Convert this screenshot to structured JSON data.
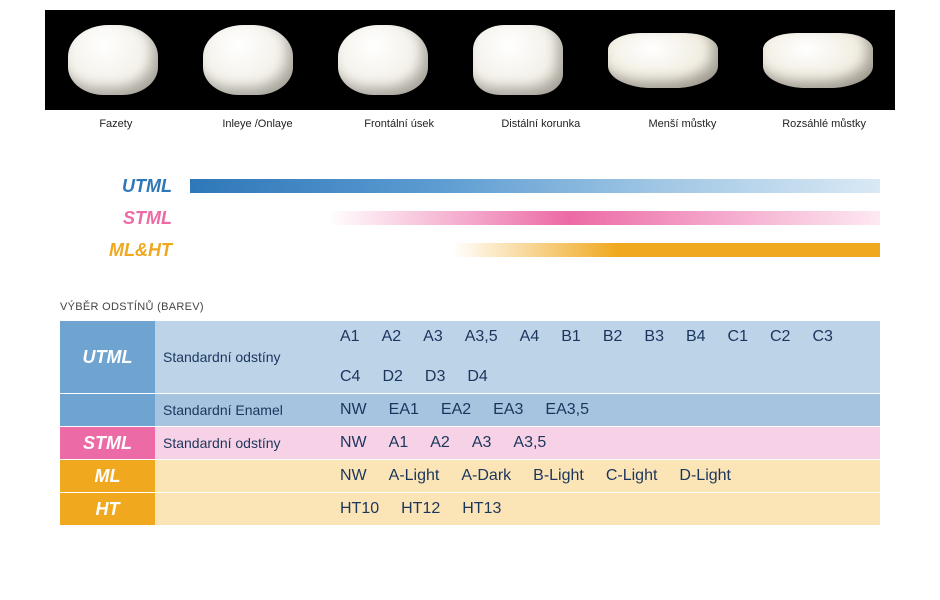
{
  "hero": {
    "background": "#000000",
    "items": [
      {
        "label": "Fazety"
      },
      {
        "label": "Inleye /Onlaye"
      },
      {
        "label": "Frontální úsek"
      },
      {
        "label": "Distální korunka"
      },
      {
        "label": "Menší můstky"
      },
      {
        "label": "Rozsáhlé můstky"
      }
    ]
  },
  "bars": [
    {
      "key": "utml",
      "label": "UTML",
      "label_color": "#2e77b8",
      "gradient_from": "#2e77b8",
      "gradient_to": "#d9e9f5",
      "start_pct": 0
    },
    {
      "key": "stml",
      "label": "STML",
      "label_color": "#ec6aa5",
      "gradient_from": "#ec6aa5",
      "gradient_to": "#fde9f2",
      "start_pct": 20
    },
    {
      "key": "mlht",
      "label": "ML&HT",
      "label_color": "#f0a81e",
      "gradient_from": "#f0a81e",
      "gradient_to": "#f0a81e",
      "start_pct": 38
    }
  ],
  "section_title": "VÝBĚR ODSTÍNŮ (BAREV)",
  "table": {
    "rows": [
      {
        "cat": "UTML",
        "cat_bg": "#6fa3d0",
        "subrows": [
          {
            "mid": "Standardní odstíny",
            "mid_bg": "#bcd3e8",
            "vals_bg": "#bcd3e8",
            "vals": [
              "A1",
              "A2",
              "A3",
              "A3,5",
              "A4",
              "B1",
              "B2",
              "B3",
              "B4",
              "C1",
              "C2",
              "C3",
              "C4",
              "D2",
              "D3",
              "D4"
            ]
          },
          {
            "mid": "Standardní Enamel",
            "mid_bg": "#a6c3df",
            "vals_bg": "#a6c3df",
            "vals": [
              "NW",
              "EA1",
              "EA2",
              "EA3",
              "EA3,5"
            ]
          }
        ]
      },
      {
        "cat": "STML",
        "cat_bg": "#ec6aa5",
        "subrows": [
          {
            "mid": "Standardní odstíny",
            "mid_bg": "#f7d2e6",
            "vals_bg": "#f7d2e6",
            "vals": [
              "NW",
              "A1",
              "A2",
              "A3",
              "A3,5"
            ]
          }
        ]
      },
      {
        "cat": "ML",
        "cat_bg": "#f0a81e",
        "subrows": [
          {
            "mid": "",
            "mid_bg": "#fbe4b6",
            "vals_bg": "#fbe4b6",
            "vals": [
              "NW",
              "A-Light",
              "A-Dark",
              "B-Light",
              "C-Light",
              "D-Light"
            ]
          }
        ]
      },
      {
        "cat": "HT",
        "cat_bg": "#f0a81e",
        "subrows": [
          {
            "mid": "",
            "mid_bg": "#fbe4b6",
            "vals_bg": "#fbe4b6",
            "vals": [
              "HT10",
              "HT12",
              "HT13"
            ]
          }
        ]
      }
    ]
  }
}
